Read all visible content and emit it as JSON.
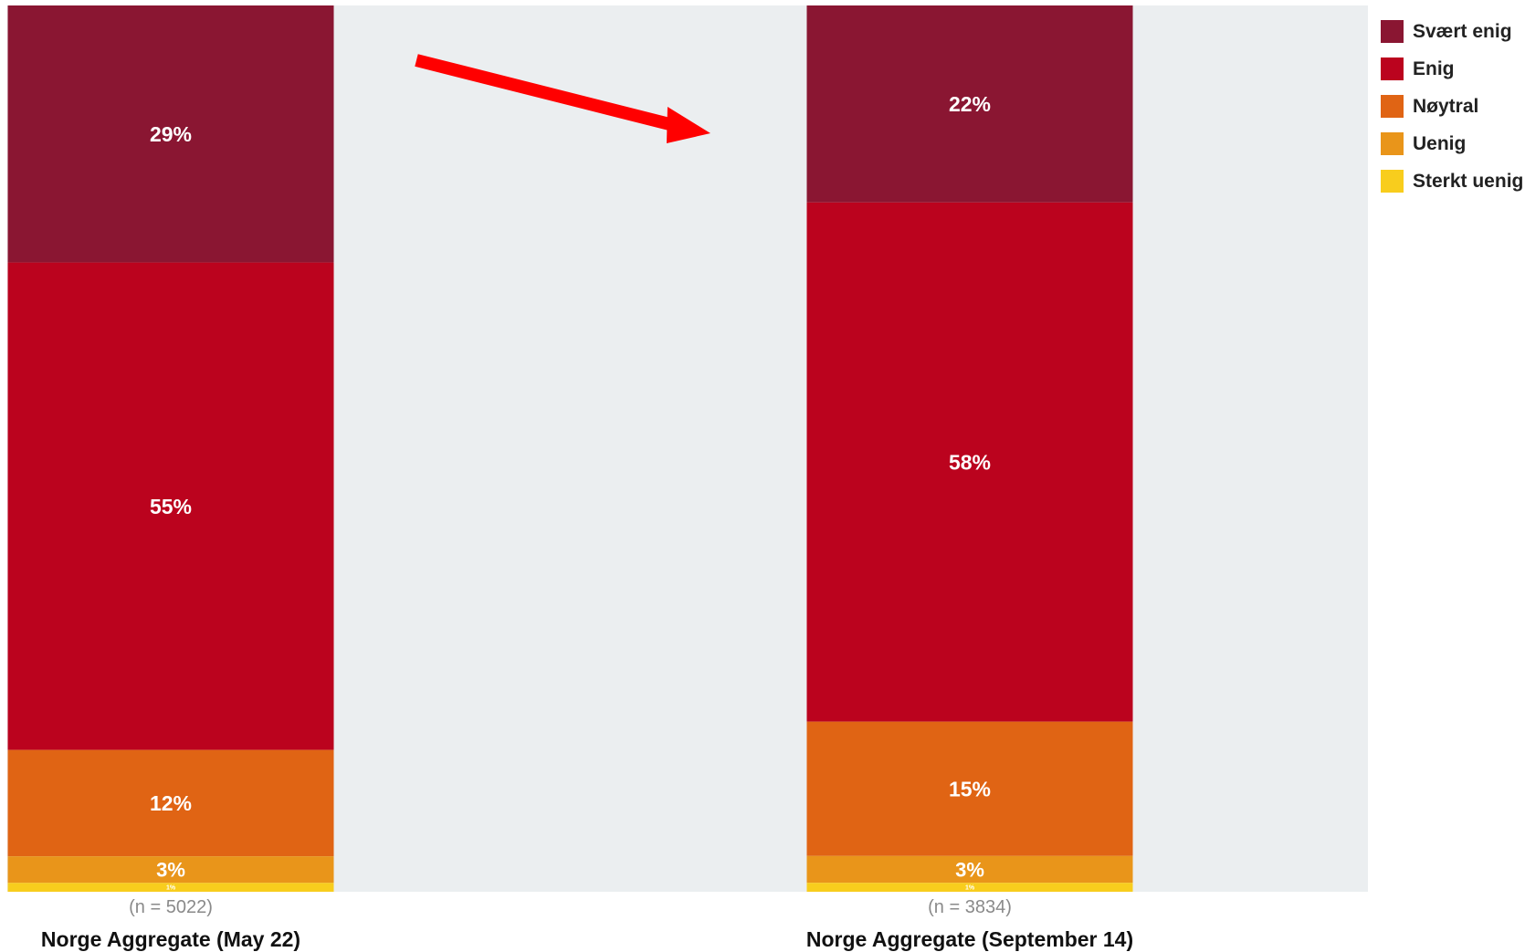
{
  "chart_data": {
    "type": "bar",
    "stacked": true,
    "orientation": "vertical",
    "categories": [
      "Norge Aggregate (May 22)",
      "Norge Aggregate (September 14)"
    ],
    "sample_sizes": [
      "(n = 5022)",
      "(n = 3834)"
    ],
    "series": [
      {
        "name": "Svært enig",
        "color": "#8a1632",
        "values": [
          29,
          22
        ],
        "labels": [
          "29%",
          "22%"
        ]
      },
      {
        "name": "Enig",
        "color": "#bb031e",
        "values": [
          55,
          58
        ],
        "labels": [
          "55%",
          "58%"
        ]
      },
      {
        "name": "Nøytral",
        "color": "#e06414",
        "values": [
          12,
          15
        ],
        "labels": [
          "12%",
          "15%"
        ]
      },
      {
        "name": "Uenig",
        "color": "#e9951a",
        "values": [
          3,
          3
        ],
        "labels": [
          "3%",
          "3%"
        ]
      },
      {
        "name": "Sterkt uenig",
        "color": "#f8cd1d",
        "values": [
          1,
          1
        ],
        "labels": [
          "1%",
          "1%"
        ]
      }
    ],
    "stack_order": "top-to-bottom",
    "legend": {
      "position": "top-right"
    },
    "plot_background": "#ebeef0",
    "annotation": {
      "type": "arrow",
      "color": "#ff0000",
      "from": "first bar",
      "to": "second bar"
    },
    "ylim": [
      0,
      100
    ]
  }
}
